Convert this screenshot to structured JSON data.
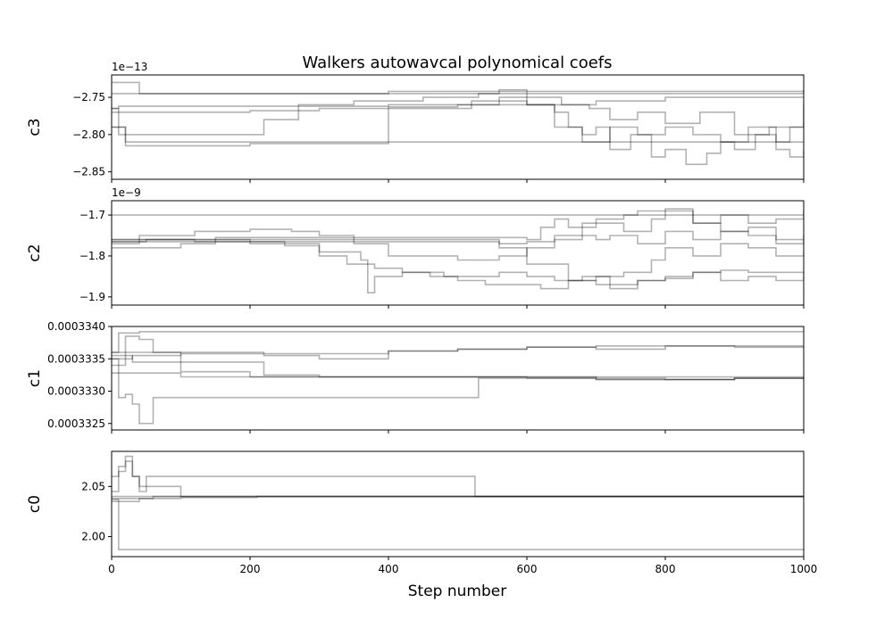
{
  "chart_data": {
    "type": "line",
    "title": "Walkers autowavcal polynomical coefs",
    "xlabel": "Step number",
    "xlim": [
      0,
      1000
    ],
    "xticks": [
      0,
      200,
      400,
      600,
      800,
      1000
    ],
    "xtick_labels": [
      "0",
      "200",
      "400",
      "600",
      "800",
      "1000"
    ],
    "line_color": "#000000",
    "line_alpha": 0.3,
    "grid": false,
    "panels": [
      {
        "ylabel": "c3",
        "offset_text": "1e−13",
        "ylim": [
          -2.86,
          -2.72
        ],
        "yticks": [
          -2.85,
          -2.8,
          -2.75
        ],
        "ytick_labels": [
          "−2.85",
          "−2.80",
          "−2.75"
        ],
        "series": [
          {
            "x": [
              0,
              10,
              40,
              1000
            ],
            "y": [
              -2.73,
              -2.73,
              -2.745,
              -2.74
            ]
          },
          {
            "x": [
              0,
              50,
              200,
              400,
              520,
              600,
              700,
              800,
              900,
              1000
            ],
            "y": [
              -2.745,
              -2.745,
              -2.745,
              -2.742,
              -2.742,
              -2.742,
              -2.742,
              -2.742,
              -2.742,
              -2.742
            ]
          },
          {
            "x": [
              0,
              10,
              100,
              250,
              400,
              500,
              600,
              700,
              800,
              900,
              1000
            ],
            "y": [
              -2.765,
              -2.762,
              -2.762,
              -2.762,
              -2.76,
              -2.76,
              -2.76,
              -2.755,
              -2.75,
              -2.75,
              -2.75
            ]
          },
          {
            "x": [
              0,
              60,
              200,
              300,
              400,
              500,
              560,
              600,
              640,
              660,
              680,
              700,
              720,
              750,
              780,
              800,
              830,
              860,
              880,
              900,
              930,
              960,
              980,
              1000
            ],
            "y": [
              -2.77,
              -2.77,
              -2.768,
              -2.765,
              -2.763,
              -2.76,
              -2.755,
              -2.76,
              -2.77,
              -2.79,
              -2.8,
              -2.79,
              -2.82,
              -2.8,
              -2.83,
              -2.82,
              -2.84,
              -2.825,
              -2.81,
              -2.82,
              -2.8,
              -2.81,
              -2.79,
              -2.785
            ]
          },
          {
            "x": [
              0,
              20,
              60,
              150,
              210,
              220,
              270,
              350,
              450,
              530,
              560,
              600,
              650,
              690,
              720,
              760,
              800,
              850,
              900,
              950,
              1000
            ],
            "y": [
              -2.79,
              -2.8,
              -2.8,
              -2.8,
              -2.8,
              -2.78,
              -2.76,
              -2.755,
              -2.75,
              -2.745,
              -2.74,
              -2.75,
              -2.76,
              -2.765,
              -2.78,
              -2.77,
              -2.785,
              -2.77,
              -2.8,
              -2.79,
              -2.76
            ]
          },
          {
            "x": [
              0,
              20,
              30,
              200,
              1000
            ],
            "y": [
              -2.79,
              -2.81,
              -2.81,
              -2.81,
              -2.81
            ]
          },
          {
            "x": [
              0,
              10,
              20,
              100,
              200,
              400,
              520,
              560,
              600,
              640,
              680,
              720,
              760,
              800,
              840,
              880,
              920,
              960,
              980,
              1000
            ],
            "y": [
              -2.765,
              -2.8,
              -2.815,
              -2.815,
              -2.812,
              -2.765,
              -2.755,
              -2.75,
              -2.76,
              -2.79,
              -2.81,
              -2.79,
              -2.8,
              -2.79,
              -2.8,
              -2.81,
              -2.79,
              -2.82,
              -2.83,
              -2.82
            ]
          }
        ]
      },
      {
        "ylabel": "c2",
        "offset_text": "1e−9",
        "ylim": [
          -1.92,
          -1.665
        ],
        "yticks": [
          -1.9,
          -1.8,
          -1.7
        ],
        "ytick_labels": [
          "−1.9",
          "−1.8",
          "−1.7"
        ],
        "series": [
          {
            "x": [
              0,
              200,
              1000
            ],
            "y": [
              -1.7,
              -1.7,
              -1.7
            ]
          },
          {
            "x": [
              0,
              50,
              150,
              200,
              300,
              400,
              500,
              560,
              600,
              620,
              640,
              660,
              700,
              740,
              780,
              800,
              840,
              880,
              920,
              960,
              1000
            ],
            "y": [
              -1.765,
              -1.76,
              -1.755,
              -1.755,
              -1.755,
              -1.755,
              -1.755,
              -1.755,
              -1.76,
              -1.73,
              -1.71,
              -1.73,
              -1.72,
              -1.74,
              -1.71,
              -1.69,
              -1.72,
              -1.74,
              -1.73,
              -1.76,
              -1.75
            ]
          },
          {
            "x": [
              0,
              40,
              120,
              200,
              260,
              300,
              350,
              400,
              450,
              500,
              560,
              600,
              640,
              680,
              700,
              740,
              760,
              800,
              840,
              880,
              920,
              960,
              1000
            ],
            "y": [
              -1.77,
              -1.75,
              -1.74,
              -1.735,
              -1.74,
              -1.75,
              -1.77,
              -1.8,
              -1.8,
              -1.81,
              -1.8,
              -1.78,
              -1.75,
              -1.72,
              -1.71,
              -1.7,
              -1.69,
              -1.685,
              -1.72,
              -1.7,
              -1.72,
              -1.71,
              -1.69
            ]
          },
          {
            "x": [
              0,
              100,
              200,
              300,
              400,
              500,
              560,
              600,
              640,
              680,
              700,
              720,
              760,
              800,
              840,
              880,
              920,
              960,
              1000
            ],
            "y": [
              -1.765,
              -1.765,
              -1.765,
              -1.765,
              -1.765,
              -1.765,
              -1.77,
              -1.765,
              -1.76,
              -1.75,
              -1.76,
              -1.75,
              -1.77,
              -1.74,
              -1.76,
              -1.74,
              -1.75,
              -1.77,
              -1.76
            ]
          },
          {
            "x": [
              0,
              50,
              100,
              150,
              200,
              250,
              300,
              340,
              380,
              420,
              460,
              500,
              540,
              580,
              620,
              660,
              700,
              740,
              780,
              800,
              840,
              880,
              920,
              960,
              1000
            ],
            "y": [
              -1.78,
              -1.78,
              -1.77,
              -1.76,
              -1.765,
              -1.775,
              -1.8,
              -1.82,
              -1.83,
              -1.84,
              -1.85,
              -1.86,
              -1.87,
              -1.87,
              -1.88,
              -1.86,
              -1.85,
              -1.84,
              -1.81,
              -1.78,
              -1.8,
              -1.77,
              -1.78,
              -1.8,
              -1.79
            ]
          },
          {
            "x": [
              0,
              60,
              120,
              200,
              300,
              360,
              370,
              380,
              420,
              480,
              520,
              560,
              600,
              640,
              680,
              720,
              760,
              800,
              840,
              880,
              920,
              960,
              1000
            ],
            "y": [
              -1.76,
              -1.76,
              -1.765,
              -1.77,
              -1.79,
              -1.81,
              -1.89,
              -1.85,
              -1.84,
              -1.85,
              -1.85,
              -1.84,
              -1.85,
              -1.86,
              -1.85,
              -1.87,
              -1.86,
              -1.855,
              -1.84,
              -1.86,
              -1.85,
              -1.86,
              -1.85
            ]
          },
          {
            "x": [
              0,
              100,
              200,
              300,
              400,
              500,
              560,
              600,
              660,
              700,
              720,
              760,
              800,
              840,
              880,
              920,
              960,
              1000
            ],
            "y": [
              -1.76,
              -1.76,
              -1.76,
              -1.76,
              -1.76,
              -1.76,
              -1.78,
              -1.82,
              -1.86,
              -1.87,
              -1.88,
              -1.86,
              -1.85,
              -1.84,
              -1.835,
              -1.84,
              -1.84,
              -1.845
            ]
          }
        ]
      },
      {
        "ylabel": "c1",
        "offset_text": "",
        "ylim": [
          0.0003324,
          0.000334
        ],
        "yticks": [
          0.0003325,
          0.000333,
          0.0003335,
          0.000334
        ],
        "ytick_labels": [
          "0.0003325",
          "0.0003330",
          "0.0003335",
          "0.0003340"
        ],
        "series": [
          {
            "x": [
              0,
              10,
              40,
              100,
              200,
              1000
            ],
            "y": [
              0.0003336,
              0.0003339,
              0.00033392,
              0.00033392,
              0.00033392,
              0.00033392
            ]
          },
          {
            "x": [
              0,
              30,
              100,
              200,
              300,
              400,
              500,
              600,
              700,
              800,
              900,
              1000
            ],
            "y": [
              0.0003335,
              0.00033355,
              0.00033358,
              0.00033358,
              0.00033358,
              0.00033362,
              0.00033365,
              0.00033368,
              0.0003337,
              0.0003337,
              0.0003337,
              0.0003337
            ]
          },
          {
            "x": [
              0,
              50,
              100,
              200,
              220,
              300,
              400,
              500,
              600,
              700,
              800,
              900,
              1000
            ],
            "y": [
              0.0003336,
              0.0003336,
              0.0003336,
              0.0003336,
              0.00033355,
              0.0003335,
              0.00033362,
              0.00033365,
              0.00033368,
              0.00033365,
              0.0003337,
              0.00033368,
              0.00033368
            ]
          },
          {
            "x": [
              0,
              60,
              100,
              200,
              300,
              400,
              500,
              600,
              700,
              800,
              900,
              1000
            ],
            "y": [
              0.00033328,
              0.00033328,
              0.00033322,
              0.00033322,
              0.00033322,
              0.00033322,
              0.00033322,
              0.00033322,
              0.0003332,
              0.00033318,
              0.0003332,
              0.00033322
            ]
          },
          {
            "x": [
              0,
              10,
              20,
              30,
              40,
              60,
              200,
              520,
              530,
              600,
              700,
              800,
              900,
              1000
            ],
            "y": [
              0.0003335,
              0.0003329,
              0.00033295,
              0.0003328,
              0.0003325,
              0.0003329,
              0.0003329,
              0.0003329,
              0.0003332,
              0.0003332,
              0.00033318,
              0.00033318,
              0.0003332,
              0.00033318
            ]
          },
          {
            "x": [
              0,
              30,
              100,
              200,
              220,
              300,
              400,
              500,
              600,
              700,
              800,
              900,
              1000
            ],
            "y": [
              0.00033355,
              0.00033345,
              0.00033345,
              0.00033345,
              0.00033325,
              0.00033322,
              0.00033322,
              0.00033322,
              0.0003332,
              0.00033318,
              0.00033318,
              0.0003332,
              0.00033322
            ]
          },
          {
            "x": [
              0,
              20,
              40,
              60,
              100,
              200,
              300,
              400,
              600,
              800,
              1000
            ],
            "y": [
              0.0003334,
              0.00033385,
              0.0003338,
              0.0003336,
              0.0003333,
              0.00033322,
              0.00033322,
              0.00033322,
              0.00033322,
              0.00033322,
              0.00033322
            ]
          }
        ]
      },
      {
        "ylabel": "c0",
        "offset_text": "",
        "ylim": [
          1.98,
          2.085
        ],
        "yticks": [
          2.0,
          2.05
        ],
        "ytick_labels": [
          "2.00",
          "2.05"
        ],
        "series": [
          {
            "x": [
              0,
              10,
              20,
              30,
              40,
              50,
              100,
              200,
              520,
              525,
              1000
            ],
            "y": [
              2.06,
              2.065,
              2.075,
              2.06,
              2.045,
              2.06,
              2.06,
              2.06,
              2.06,
              2.04,
              2.04
            ]
          },
          {
            "x": [
              0,
              50,
              100,
              200,
              400,
              1000
            ],
            "y": [
              2.04,
              2.04,
              2.04,
              2.04,
              2.04,
              2.04
            ]
          },
          {
            "x": [
              0,
              20,
              40,
              60,
              100,
              200,
              1000
            ],
            "y": [
              2.035,
              2.035,
              2.038,
              2.04,
              2.04,
              2.04,
              2.04
            ]
          },
          {
            "x": [
              0,
              10,
              20,
              30,
              40,
              100,
              200,
              1000
            ],
            "y": [
              2.045,
              2.07,
              2.08,
              2.06,
              2.05,
              2.04,
              2.04,
              2.04
            ]
          },
          {
            "x": [
              0,
              10,
              200,
              1000
            ],
            "y": [
              2.037,
              1.987,
              1.987,
              1.988
            ]
          },
          {
            "x": [
              0,
              100,
              200,
              210,
              1000
            ],
            "y": [
              2.038,
              2.039,
              2.039,
              2.04,
              2.04
            ]
          }
        ]
      }
    ]
  }
}
